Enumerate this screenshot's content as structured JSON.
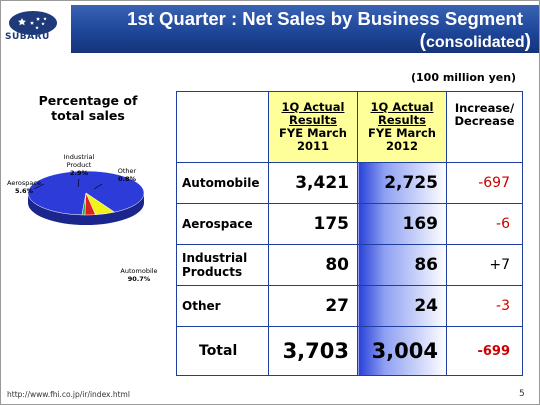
{
  "header": {
    "logo_text": "SUBARU",
    "title": "1st Quarter : Net Sales by Business Segment",
    "subtitle_text": "consolidated",
    "subtitle_open": "(",
    "subtitle_close": ")"
  },
  "unit": "(100 million yen)",
  "pie": {
    "title": "Percentage of total sales",
    "slices": [
      {
        "name": "Automobile",
        "pct_label": "90.7%",
        "value": 90.7,
        "color": "#2d3bd9"
      },
      {
        "name": "Aerospace",
        "pct_label": "5.6%",
        "value": 5.6,
        "color": "#f2f21a"
      },
      {
        "name": "Industrial Product",
        "pct_label": "2.9%",
        "value": 2.9,
        "color": "#e02020"
      },
      {
        "name": "Other",
        "pct_label": "0.8%",
        "value": 0.8,
        "color": "#2da84a"
      }
    ]
  },
  "table": {
    "col1": {
      "line1": "1Q Actual",
      "line2": "Results",
      "line3": "FYE March",
      "line4": "2011"
    },
    "col2": {
      "line1": "1Q Actual",
      "line2": "Results",
      "line3": "FYE March",
      "line4": "2012"
    },
    "col3": {
      "line1": "Increase/",
      "line2": "Decrease"
    },
    "rows": [
      {
        "label": "Automobile",
        "fy2011": "3,421",
        "fy2012": "2,725",
        "change": "-697"
      },
      {
        "label": "Aerospace",
        "fy2011": "175",
        "fy2012": "169",
        "change": "-6"
      },
      {
        "label_line1": "Industrial",
        "label_line2": "Products",
        "fy2011": "80",
        "fy2012": "86",
        "change": "+7"
      },
      {
        "label": "Other",
        "fy2011": "27",
        "fy2012": "24",
        "change": "-3"
      }
    ],
    "total": {
      "label": "Total",
      "fy2011": "3,703",
      "fy2012": "3,004",
      "change": "-699"
    }
  },
  "footer": {
    "url": "http://www.fhi.co.jp/ir/index.html",
    "page": "5"
  }
}
